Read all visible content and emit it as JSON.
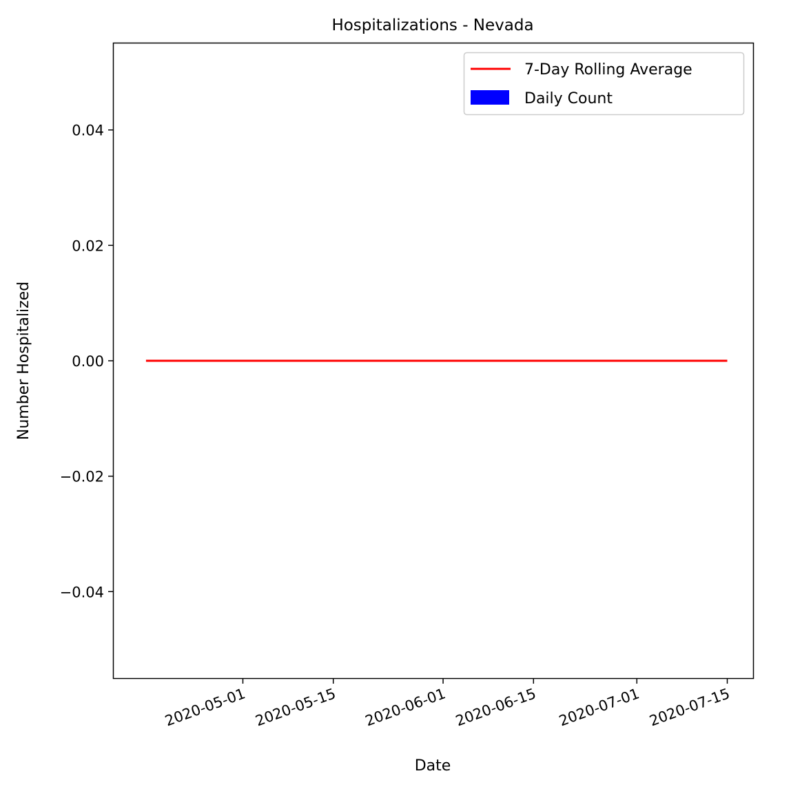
{
  "chart_data": {
    "type": "line",
    "title": "Hospitalizations - Nevada",
    "xlabel": "Date",
    "ylabel": "Number Hospitalized",
    "x_tick_labels": [
      "2020-05-01",
      "2020-05-15",
      "2020-06-01",
      "2020-06-15",
      "2020-07-01",
      "2020-07-15"
    ],
    "y_tick_labels": [
      "−0.04",
      "−0.02",
      "0.00",
      "0.02",
      "0.04"
    ],
    "y_ticks": [
      -0.04,
      -0.02,
      0.0,
      0.02,
      0.04
    ],
    "xlim": [
      "2020-04-11",
      "2020-07-19"
    ],
    "ylim": [
      -0.055,
      0.055
    ],
    "grid": false,
    "legend": {
      "placement": "top-right",
      "entries": [
        "7-Day Rolling Average",
        "Daily Count"
      ]
    },
    "series": [
      {
        "name": "7-Day Rolling Average",
        "kind": "line",
        "color": "#ff0000",
        "x": [
          "2020-04-16",
          "2020-07-15"
        ],
        "values": [
          0,
          0
        ]
      },
      {
        "name": "Daily Count",
        "kind": "bar",
        "color": "#0000ff",
        "x": [
          "2020-04-16",
          "2020-07-15"
        ],
        "values": [
          0,
          0
        ]
      }
    ]
  }
}
